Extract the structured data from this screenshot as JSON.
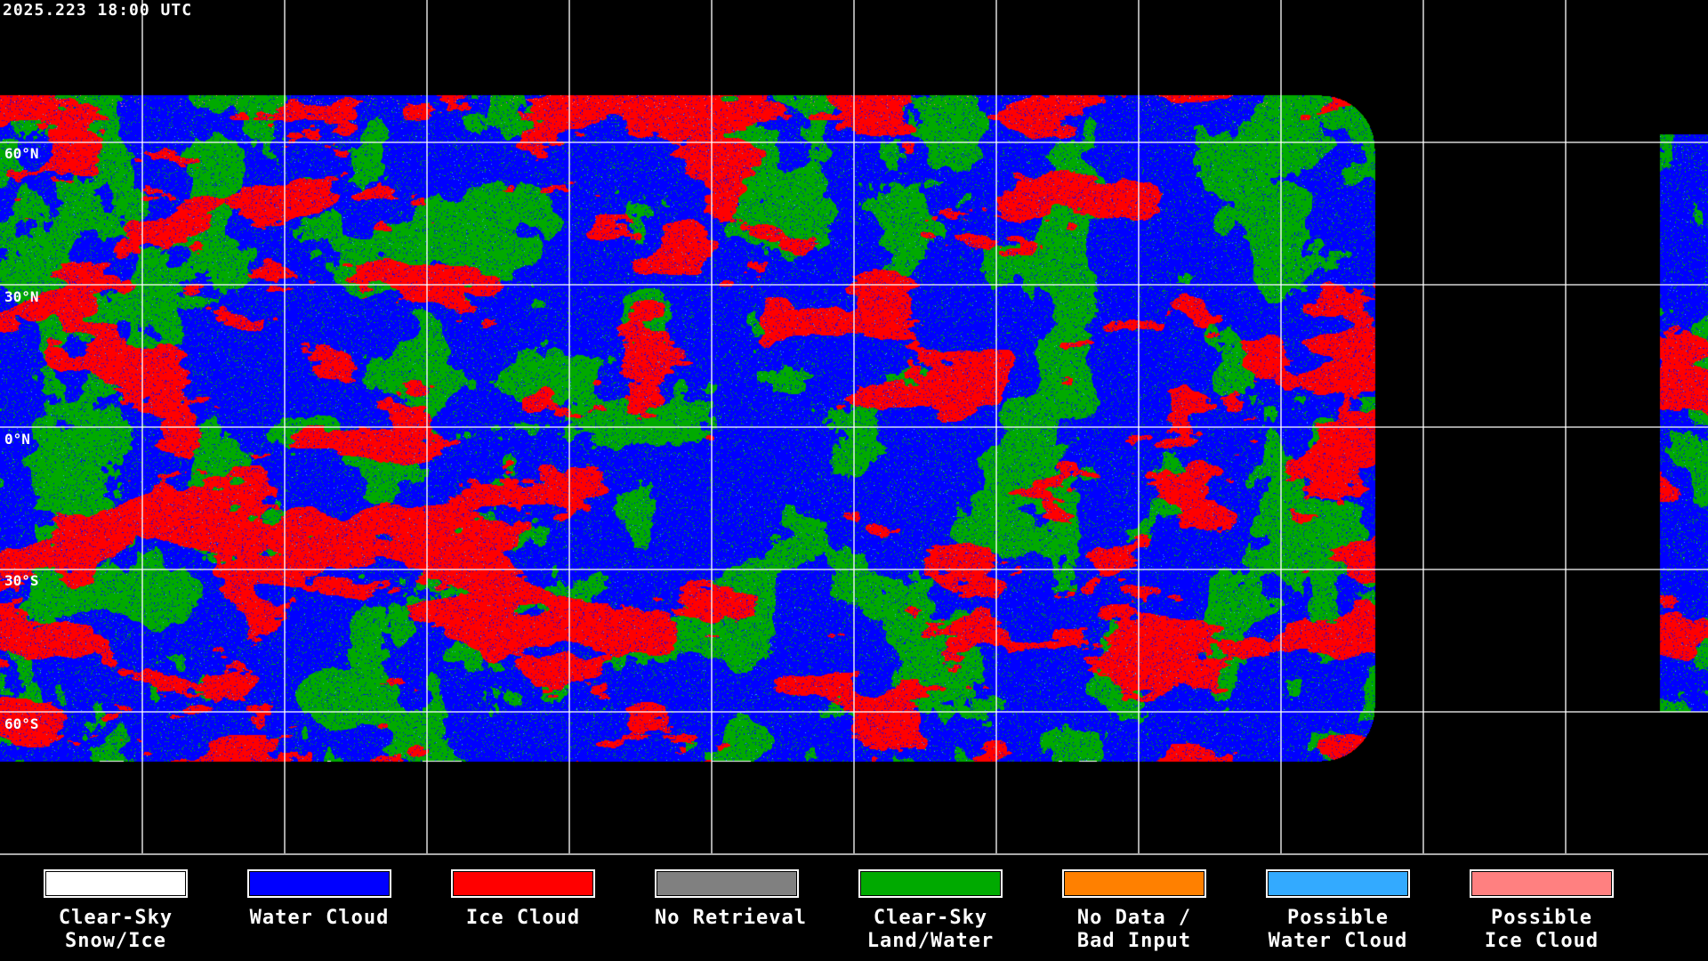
{
  "title": "2025.223 18:00 UTC",
  "lat_labels": [
    "60°N",
    "30°N",
    "0°N",
    "30°S",
    "60°S"
  ],
  "legend": [
    {
      "line1": "Clear-Sky",
      "line2": "Snow/Ice",
      "color": "#ffffff"
    },
    {
      "line1": "Water Cloud",
      "line2": "",
      "color": "#0000ff"
    },
    {
      "line1": "Ice Cloud",
      "line2": "",
      "color": "#ff0000"
    },
    {
      "line1": "No Retrieval",
      "line2": "",
      "color": "#808080"
    },
    {
      "line1": "Clear-Sky",
      "line2": "Land/Water",
      "color": "#00aa00"
    },
    {
      "line1": "No Data /",
      "line2": "Bad Input",
      "color": "#ff8000"
    },
    {
      "line1": "Possible",
      "line2": "Water Cloud",
      "color": "#33aaff"
    },
    {
      "line1": "Possible",
      "line2": "Ice Cloud",
      "color": "#ff8080"
    }
  ],
  "map": {
    "projection": "equirectangular",
    "grid_spacing_deg": 30,
    "gridline_color": "#ffffff",
    "background": "#000000"
  }
}
